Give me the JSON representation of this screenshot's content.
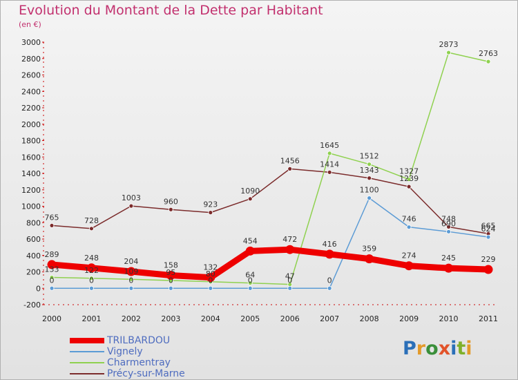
{
  "title": "Evolution du Montant de la Dette par Habitant",
  "subtitle": "(en €)",
  "logo": {
    "text": "Proxiti",
    "letter_colors": [
      "#2a6fb8",
      "#e39a2a",
      "#3a8f3a",
      "#e2532a",
      "#2a6fb8",
      "#7fb02a",
      "#e39a2a"
    ]
  },
  "chart_data": {
    "type": "line",
    "title": "Evolution du Montant de la Dette par Habitant",
    "ylabel": "(en €)",
    "xlabel": "",
    "categories": [
      "2000",
      "2001",
      "2002",
      "2003",
      "2004",
      "2005",
      "2006",
      "2007",
      "2008",
      "2009",
      "2010",
      "2011"
    ],
    "ylim": [
      -200,
      3000
    ],
    "yticks": [
      "-200",
      "0",
      "200",
      "400",
      "600",
      "800",
      "1000",
      "1200",
      "1400",
      "1600",
      "1800",
      "2000",
      "2200",
      "2400",
      "2600",
      "2800",
      "3000"
    ],
    "grid": false,
    "legend_position": "bottom-left",
    "series": [
      {
        "name": "TRILBARDOU",
        "color": "#ee0000",
        "values": [
          289,
          248,
          204,
          158,
          132,
          454,
          472,
          416,
          359,
          274,
          245,
          229
        ],
        "labels": [
          "289",
          "248",
          "204",
          "158",
          "132",
          "454",
          "472",
          "416",
          "359",
          "274",
          "245",
          "229"
        ]
      },
      {
        "name": "Vignely",
        "color": "#5b9bd5",
        "values": [
          0,
          0,
          0,
          0,
          0,
          0,
          0,
          0,
          1100,
          746,
          690,
          624
        ],
        "labels": [
          "0",
          "0",
          "0",
          "0",
          "0",
          "0",
          "0",
          "0",
          "1100",
          "746",
          "690",
          "624"
        ]
      },
      {
        "name": "Charmentray",
        "color": "#8fd14f",
        "values": [
          133,
          122,
          109,
          95,
          80,
          64,
          47,
          1645,
          1512,
          1327,
          2873,
          2763
        ],
        "labels": [
          "133",
          "122",
          "109",
          "95",
          "80",
          "64",
          "47",
          "1645",
          "1512",
          "1327",
          "2873",
          "2763"
        ]
      },
      {
        "name": "Précy-sur-Marne",
        "color": "#7b2b2b",
        "values": [
          765,
          728,
          1003,
          960,
          923,
          1090,
          1456,
          1414,
          1343,
          1239,
          748,
          665
        ],
        "labels": [
          "765",
          "728",
          "1003",
          "960",
          "923",
          "1090",
          "1456",
          "1414",
          "1343",
          "1239",
          "748",
          "665"
        ]
      }
    ]
  }
}
